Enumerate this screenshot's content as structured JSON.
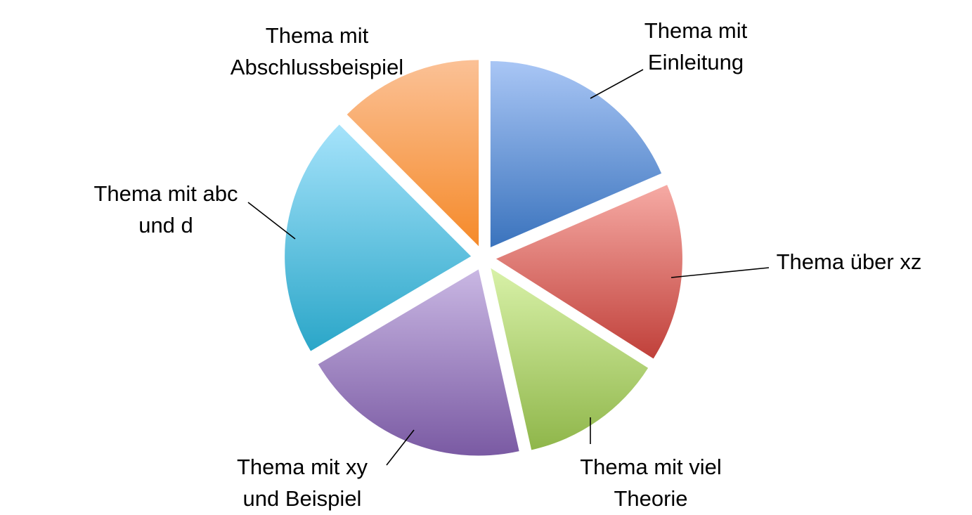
{
  "chart_data": {
    "type": "pie",
    "title": "",
    "legend": "none",
    "exploded": true,
    "start": "top, clockwise",
    "slices": [
      {
        "name": "Thema mit Einleitung",
        "label_lines": [
          "Thema mit",
          "Einleitung"
        ],
        "value": 18.5,
        "color_top": "#a9c6f5",
        "color_bottom": "#3a73bd"
      },
      {
        "name": "Thema über xz",
        "label_lines": [
          "Thema über xz"
        ],
        "value": 15.5,
        "color_top": "#f6aaa4",
        "color_bottom": "#c0403a"
      },
      {
        "name": "Thema mit viel Theorie",
        "label_lines": [
          "Thema mit viel",
          "Theorie"
        ],
        "value": 12.5,
        "color_top": "#d8f1a8",
        "color_bottom": "#8fb64a"
      },
      {
        "name": "Thema mit xy und Beispiel",
        "label_lines": [
          "Thema mit xy",
          "und Beispiel"
        ],
        "value": 20.0,
        "color_top": "#c9b7e3",
        "color_bottom": "#7a5aa3"
      },
      {
        "name": "Thema mit abc und d",
        "label_lines": [
          "Thema mit abc",
          "und d"
        ],
        "value": 21.0,
        "color_top": "#a6e3fb",
        "color_bottom": "#2aa6c8"
      },
      {
        "name": "Thema mit Abschlussbeispiel",
        "label_lines": [
          "Thema mit",
          "Abschlussbeispiel"
        ],
        "value": 12.5,
        "color_top": "#fbc196",
        "color_bottom": "#f58a2a"
      }
    ]
  }
}
